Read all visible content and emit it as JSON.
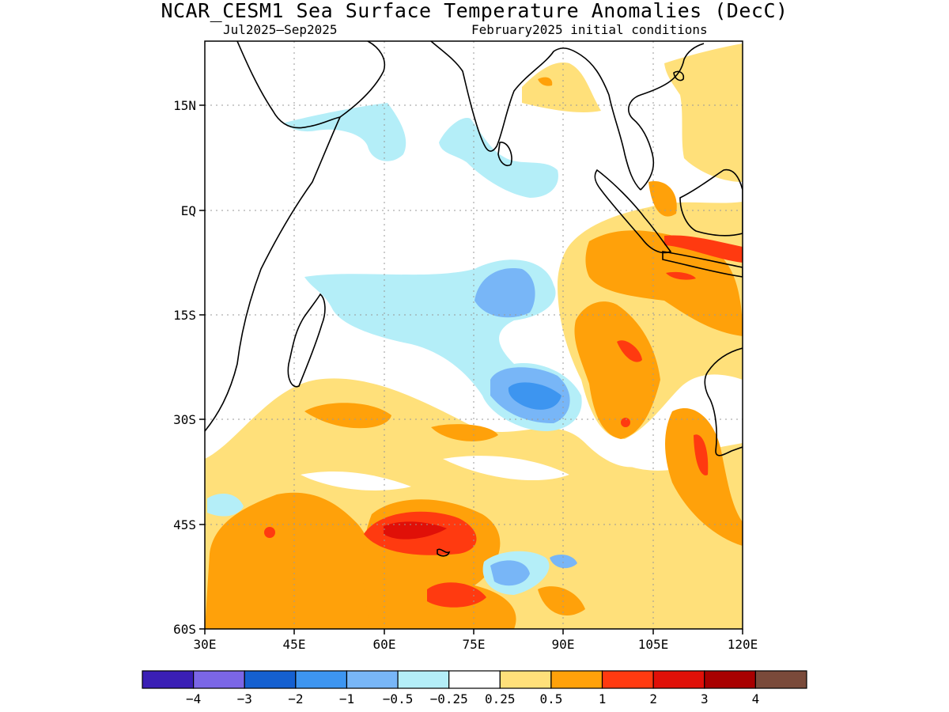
{
  "title": "NCAR_CESM1 Sea Surface Temperature Anomalies (DecC)",
  "subtitle_left": "Jul2025–Sep2025",
  "subtitle_right": "February2025 initial conditions",
  "map": {
    "lat_labels": [
      "15N",
      "EQ",
      "15S",
      "30S",
      "45S",
      "60S"
    ],
    "lon_labels": [
      "30E",
      "45E",
      "60E",
      "75E",
      "90E",
      "105E",
      "120E"
    ]
  },
  "colorbar": {
    "colors": [
      "#3a1fb5",
      "#7b66e6",
      "#1560d0",
      "#3d95f0",
      "#78b6f7",
      "#b4eef8",
      "#ffffff",
      "#ffe07a",
      "#ffa10a",
      "#ff3a10",
      "#e01008",
      "#a80000",
      "#7a4a3a"
    ],
    "labels": [
      "−4",
      "−3",
      "−2",
      "−1",
      "−0.5",
      "−0.25",
      "0.25",
      "0.5",
      "1",
      "2",
      "3",
      "4"
    ]
  }
}
